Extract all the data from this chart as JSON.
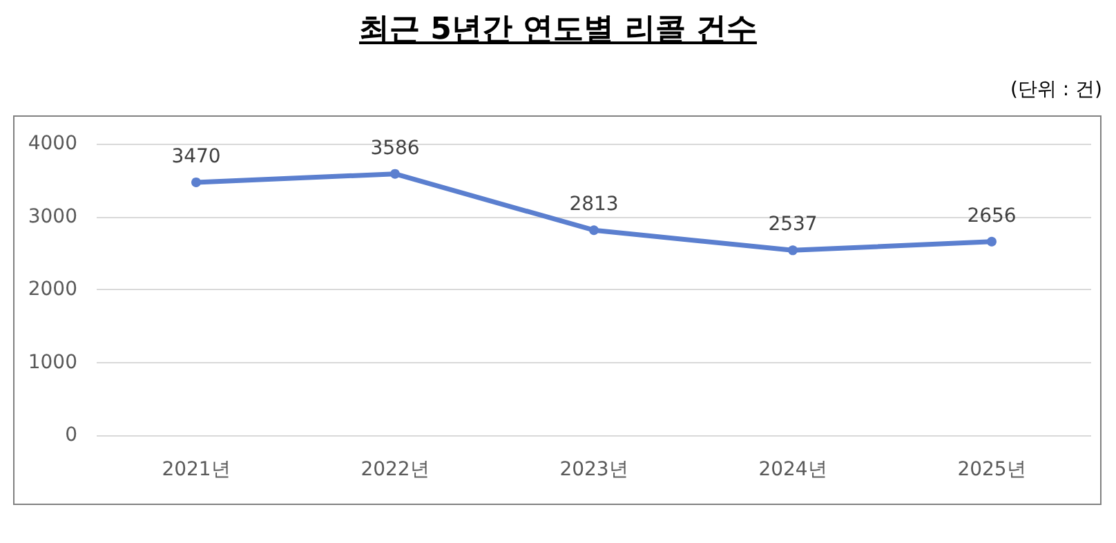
{
  "chart_data": {
    "type": "line",
    "title": "최근 5년간 연도별 리콜 건수",
    "annotations": [
      "(단위 : 건)"
    ],
    "categories": [
      "2021년",
      "2022년",
      "2023년",
      "2024년",
      "2025년"
    ],
    "series": [
      {
        "color": "#5b7fcf",
        "values": [
          3470,
          3586,
          2813,
          2537,
          2656
        ]
      }
    ],
    "ylim": [
      0,
      4000
    ],
    "yticks": [
      0,
      1000,
      2000,
      3000,
      4000
    ],
    "grid": "y",
    "marker": "circle",
    "line_style": "solid",
    "data_labels": true
  }
}
